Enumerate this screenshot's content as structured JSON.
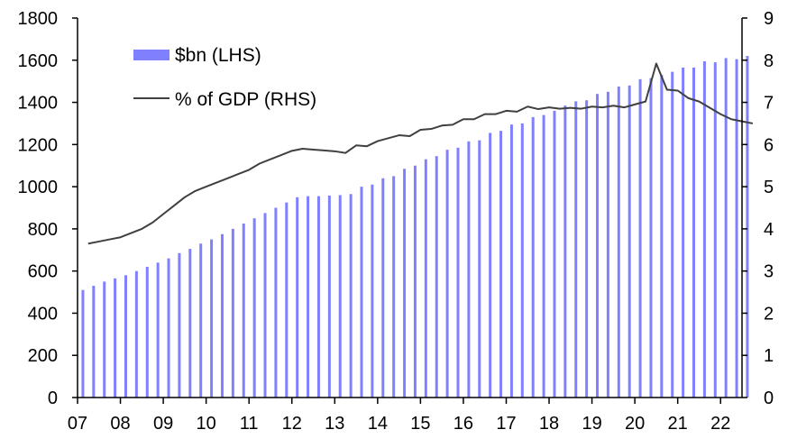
{
  "chart_data": {
    "type": "bar+line",
    "title": "",
    "x_tick_labels": [
      "07",
      "08",
      "09",
      "10",
      "11",
      "12",
      "13",
      "14",
      "15",
      "16",
      "17",
      "18",
      "19",
      "20",
      "21",
      "22"
    ],
    "left_axis": {
      "ylim": [
        0,
        1800
      ],
      "ticks": [
        0,
        200,
        400,
        600,
        800,
        1000,
        1200,
        1400,
        1600,
        1800
      ]
    },
    "right_axis": {
      "ylim": [
        0,
        9
      ],
      "ticks": [
        0,
        1,
        2,
        3,
        4,
        5,
        6,
        7,
        8,
        9
      ]
    },
    "legend": {
      "placement": "top-left",
      "bar_label": "$bn (LHS)",
      "line_label": "% of GDP (RHS)"
    },
    "x_start_year": 2007,
    "series": [
      {
        "name": "$bn (LHS)",
        "kind": "bar",
        "axis": "left",
        "values": [
          510,
          530,
          550,
          565,
          580,
          600,
          620,
          640,
          660,
          685,
          705,
          730,
          750,
          775,
          800,
          825,
          850,
          875,
          900,
          925,
          950,
          955,
          955,
          958,
          960,
          965,
          1000,
          1010,
          1040,
          1050,
          1085,
          1100,
          1130,
          1145,
          1175,
          1185,
          1215,
          1220,
          1255,
          1265,
          1295,
          1300,
          1330,
          1340,
          1360,
          1385,
          1405,
          1410,
          1440,
          1450,
          1475,
          1480,
          1510,
          1515,
          1530,
          1545,
          1565,
          1565,
          1595,
          1590,
          1610,
          1605,
          1620
        ]
      },
      {
        "name": "% of GDP (RHS)",
        "kind": "line",
        "axis": "right",
        "values": [
          3.65,
          3.7,
          3.75,
          3.8,
          3.9,
          4.0,
          4.15,
          4.35,
          4.55,
          4.75,
          4.9,
          5.0,
          5.1,
          5.2,
          5.3,
          5.4,
          5.55,
          5.65,
          5.75,
          5.85,
          5.9,
          5.88,
          5.86,
          5.84,
          5.8,
          5.98,
          5.96,
          6.08,
          6.15,
          6.22,
          6.2,
          6.35,
          6.37,
          6.45,
          6.47,
          6.6,
          6.6,
          6.72,
          6.72,
          6.8,
          6.78,
          6.9,
          6.84,
          6.88,
          6.85,
          6.87,
          6.85,
          6.9,
          6.88,
          6.92,
          6.88,
          6.95,
          7.02,
          7.92,
          7.3,
          7.28,
          7.1,
          7.02,
          6.87,
          6.72,
          6.6,
          6.55,
          6.5
        ]
      }
    ]
  },
  "colors": {
    "bar": "#8080ff",
    "line": "#404040",
    "axis": "#000000"
  }
}
